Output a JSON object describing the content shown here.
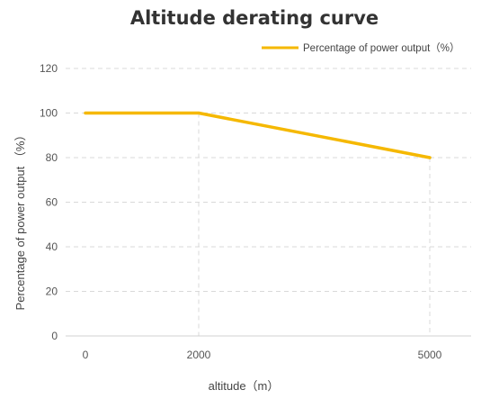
{
  "chart_data": {
    "type": "line",
    "title": "Altitude derating curve",
    "xlabel": "altitude（m）",
    "ylabel": "Percentage of power output （%）",
    "categories": [
      "0",
      "2000",
      "5000"
    ],
    "series": [
      {
        "name": "Percentage of power output（%）",
        "values": [
          100,
          100,
          80
        ],
        "color": "#f5b800"
      }
    ],
    "ylim": [
      0,
      120
    ],
    "yticks": [
      0,
      20,
      40,
      60,
      80,
      100,
      120
    ],
    "grid": true,
    "grid_style": "dashed",
    "drop_lines": true,
    "legend_position": "top-right"
  }
}
